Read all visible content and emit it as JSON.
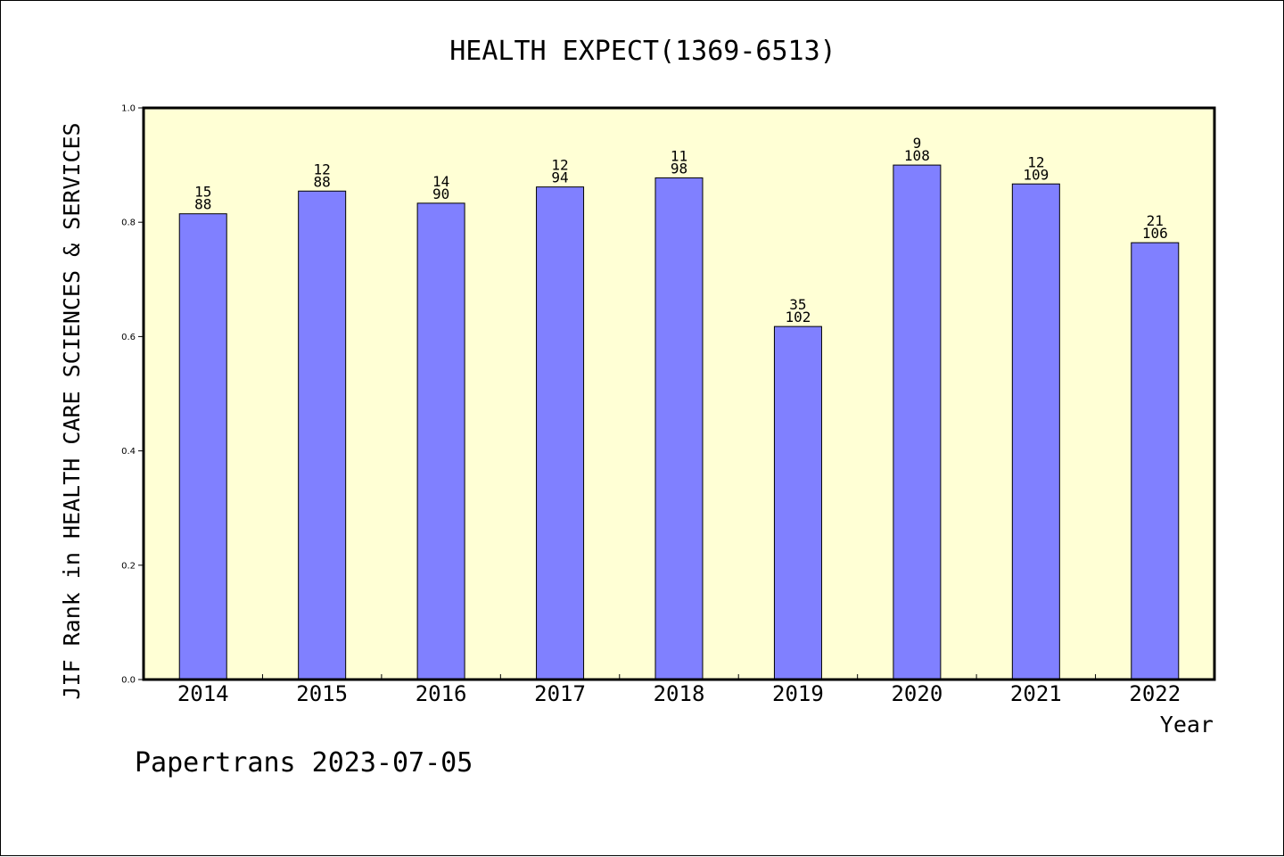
{
  "chart_data": {
    "type": "bar",
    "title": "HEALTH EXPECT(1369-6513)",
    "xlabel": "Year",
    "ylabel": "JIF Rank in HEALTH CARE SCIENCES & SERVICES",
    "categories": [
      "2014",
      "2015",
      "2016",
      "2017",
      "2018",
      "2019",
      "2020",
      "2021",
      "2022"
    ],
    "values": [
      0.8148,
      0.8545,
      0.8333,
      0.8617,
      0.8776,
      0.6176,
      0.9,
      0.867,
      0.7642
    ],
    "labels_top": [
      "15",
      "12",
      "14",
      "12",
      "11",
      "35",
      "9",
      "12",
      "21"
    ],
    "labels_bottom": [
      "88",
      "88",
      "90",
      "94",
      "98",
      "102",
      "108",
      "109",
      "106"
    ],
    "yticks": [
      "0.0",
      "0.2",
      "0.4",
      "0.6",
      "0.8",
      "1.0"
    ],
    "ylim": [
      0,
      1
    ],
    "grid": false,
    "colors": {
      "bar": "#8080ff",
      "plot_background": "#ffffd5",
      "outline": "#000000"
    }
  },
  "footer": "Papertrans 2023-07-05"
}
